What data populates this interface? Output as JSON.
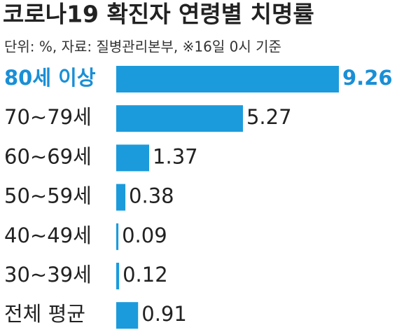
{
  "chart_data": {
    "type": "hbar",
    "title": "코로나19 확진자 연령별 치명률",
    "subtitle": "단위: %, 자료: 질병관리본부, ※16일 0시 기준",
    "categories": [
      "80세 이상",
      "70~79세",
      "60~69세",
      "50~59세",
      "40~49세",
      "30~39세",
      "전체 평균"
    ],
    "values": [
      9.26,
      5.27,
      1.37,
      0.38,
      0.09,
      0.12,
      0.91
    ],
    "color": "#1b9bdb",
    "highlight_index": 0,
    "highlight_color": "#1a8fd6"
  }
}
